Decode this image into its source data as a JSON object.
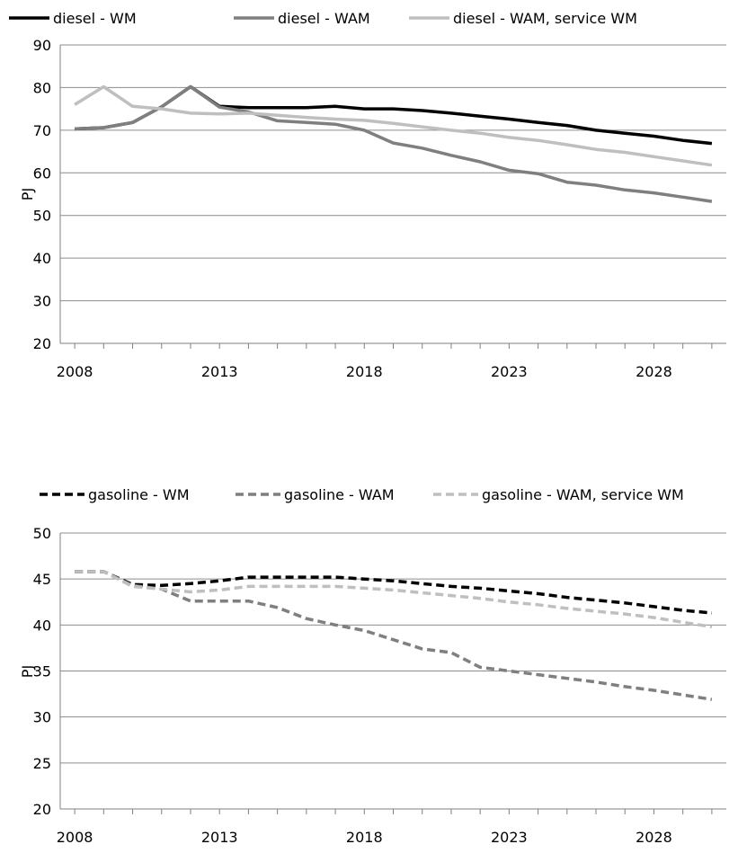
{
  "chart_data": [
    {
      "type": "line",
      "ylabel": "PJ",
      "ylim": [
        20,
        90
      ],
      "yticks": [
        20,
        30,
        40,
        50,
        60,
        70,
        80,
        90
      ],
      "xlim": [
        2007.5,
        2030.5
      ],
      "xticks": [
        "2008",
        "2013",
        "2018",
        "2023",
        "2028"
      ],
      "grid": "horizontal",
      "legend": "top",
      "x": [
        2008,
        2009,
        2010,
        2011,
        2012,
        2013,
        2014,
        2015,
        2016,
        2017,
        2018,
        2019,
        2020,
        2021,
        2022,
        2023,
        2024,
        2025,
        2026,
        2027,
        2028,
        2029,
        2030
      ],
      "series": [
        {
          "name": "diesel - WM",
          "color": "#000000",
          "dash": "solid",
          "values": [
            70.3,
            70.6,
            71.8,
            75.5,
            80.2,
            75.6,
            75.3,
            75.3,
            75.3,
            75.6,
            75.0,
            75.0,
            74.6,
            74.0,
            73.3,
            72.6,
            71.8,
            71.1,
            70.0,
            69.3,
            68.6,
            67.6,
            66.9
          ]
        },
        {
          "name": "diesel - WAM",
          "color": "#7f7f7f",
          "dash": "solid",
          "values": [
            70.3,
            70.6,
            71.8,
            75.5,
            80.2,
            75.4,
            74.3,
            72.2,
            71.8,
            71.4,
            70.0,
            67.0,
            65.8,
            64.1,
            62.6,
            60.6,
            59.8,
            57.8,
            57.1,
            56.0,
            55.3,
            54.3,
            53.3
          ]
        },
        {
          "name": "diesel - WAM, service WM",
          "color": "#bfbfbf",
          "dash": "solid",
          "values": [
            76.0,
            80.2,
            75.6,
            75.0,
            74.0,
            73.8,
            74.0,
            73.5,
            73.0,
            72.6,
            72.3,
            71.6,
            70.8,
            70.0,
            69.3,
            68.3,
            67.6,
            66.6,
            65.5,
            64.8,
            63.8,
            62.8,
            61.8
          ]
        }
      ]
    },
    {
      "type": "line",
      "ylabel": "PJ",
      "ylim": [
        20,
        50
      ],
      "yticks": [
        20,
        25,
        30,
        35,
        40,
        45,
        50
      ],
      "xlim": [
        2007.5,
        2030.5
      ],
      "xticks": [
        "2008",
        "2013",
        "2018",
        "2023",
        "2028"
      ],
      "grid": "horizontal",
      "legend": "top",
      "x": [
        2008,
        2009,
        2010,
        2011,
        2012,
        2013,
        2014,
        2015,
        2016,
        2017,
        2018,
        2019,
        2020,
        2021,
        2022,
        2023,
        2024,
        2025,
        2026,
        2027,
        2028,
        2029,
        2030
      ],
      "series": [
        {
          "name": "gasoline - WM",
          "color": "#000000",
          "dash": "dashed",
          "values": [
            45.8,
            45.8,
            44.4,
            44.3,
            44.5,
            44.8,
            45.2,
            45.2,
            45.2,
            45.2,
            45.0,
            44.8,
            44.5,
            44.2,
            44.0,
            43.7,
            43.4,
            43.0,
            42.7,
            42.4,
            42.0,
            41.6,
            41.3
          ]
        },
        {
          "name": "gasoline - WAM",
          "color": "#7f7f7f",
          "dash": "dashed",
          "values": [
            45.8,
            45.8,
            44.3,
            43.9,
            42.6,
            42.6,
            42.6,
            41.9,
            40.7,
            40.0,
            39.4,
            38.4,
            37.4,
            37.0,
            35.4,
            35.0,
            34.6,
            34.2,
            33.8,
            33.3,
            32.9,
            32.4,
            31.9
          ]
        },
        {
          "name": "gasoline - WAM, service WM",
          "color": "#bfbfbf",
          "dash": "dashed",
          "values": [
            45.8,
            45.8,
            44.2,
            43.9,
            43.6,
            43.8,
            44.2,
            44.2,
            44.2,
            44.2,
            44.0,
            43.8,
            43.5,
            43.2,
            42.9,
            42.5,
            42.2,
            41.8,
            41.5,
            41.2,
            40.8,
            40.3,
            39.8
          ]
        }
      ]
    }
  ]
}
